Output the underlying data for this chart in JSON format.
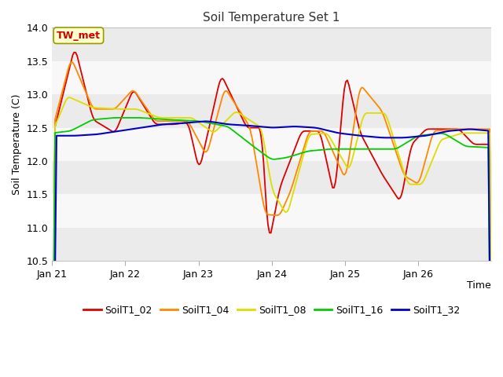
{
  "title": "Soil Temperature Set 1",
  "xlabel": "Time",
  "ylabel": "Soil Temperature (C)",
  "ylim": [
    10.5,
    14.0
  ],
  "annotation_text": "TW_met",
  "annotation_color": "#CC0000",
  "annotation_bg": "#FFFFCC",
  "annotation_border": "#999900",
  "fig_bg_color": "#FFFFFF",
  "plot_bg_color": "#FFFFFF",
  "series_colors": {
    "SoilT1_02": "#DD0000",
    "SoilT1_04": "#FF8800",
    "SoilT1_08": "#DDDD00",
    "SoilT1_16": "#00CC00",
    "SoilT1_32": "#0000CC"
  },
  "x_tick_labels": [
    "Jan 21",
    "Jan 22",
    "Jan 23",
    "Jan 24",
    "Jan 25",
    "Jan 26"
  ],
  "num_points": 300,
  "days": 6,
  "yticks": [
    10.5,
    11.0,
    11.5,
    12.0,
    12.5,
    13.0,
    13.5,
    14.0
  ],
  "band_colors": [
    "#EBEBEB",
    "#F8F8F8"
  ]
}
